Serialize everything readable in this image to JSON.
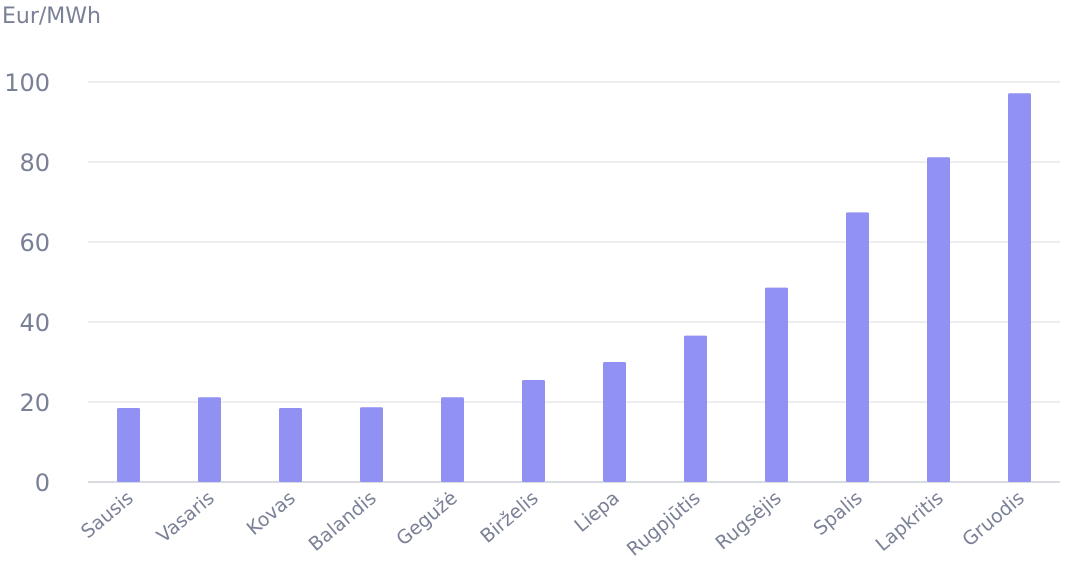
{
  "chart_data": {
    "type": "bar",
    "ylabel": "Eur/MWh",
    "categories": [
      "Sausis",
      "Vasaris",
      "Kovas",
      "Balandis",
      "Gegužė",
      "Birželis",
      "Liepa",
      "Rugpjūtis",
      "Rugsėjis",
      "Spalis",
      "Lapkritis",
      "Gruodis"
    ],
    "values": [
      18.5,
      21.2,
      18.5,
      18.7,
      21.2,
      25.5,
      30.0,
      36.6,
      48.6,
      67.4,
      81.2,
      97.2
    ],
    "ylim": [
      0,
      100
    ],
    "yticks": [
      0,
      20,
      40,
      60,
      80,
      100
    ],
    "grid": true,
    "bar_color": "#9191f4"
  }
}
